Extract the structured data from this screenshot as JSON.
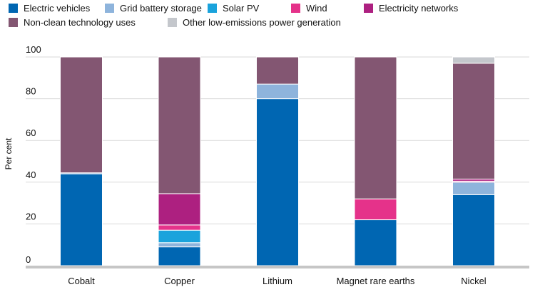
{
  "chart_data": {
    "type": "bar",
    "stacked": true,
    "categories": [
      "Cobalt",
      "Copper",
      "Lithium",
      "Magnet rare earths",
      "Nickel"
    ],
    "ylabel": "Per cent",
    "ylim": [
      0,
      100
    ],
    "yticks": [
      0,
      20,
      40,
      60,
      80,
      100
    ],
    "grid": true,
    "legend_placement": "top-left",
    "series": [
      {
        "name": "Electric vehicles",
        "color": "#0066b2",
        "values": [
          44,
          9,
          80,
          22,
          34
        ]
      },
      {
        "name": "Grid battery storage",
        "color": "#8eb4dc",
        "values": [
          0.5,
          2,
          7,
          0,
          6
        ]
      },
      {
        "name": "Solar PV",
        "color": "#1aa3dc",
        "values": [
          0,
          6,
          0,
          0,
          0
        ]
      },
      {
        "name": "Wind",
        "color": "#e5328a",
        "values": [
          0,
          2.5,
          0,
          10,
          0.5
        ]
      },
      {
        "name": "Electricity networks",
        "color": "#ad2080",
        "values": [
          0,
          15,
          0,
          0,
          1
        ]
      },
      {
        "name": "Non-clean technology uses",
        "color": "#835672",
        "values": [
          55.5,
          65.5,
          13,
          68,
          55.5
        ]
      },
      {
        "name": "Other low-emissions power generation",
        "color": "#c4c7cc",
        "values": [
          0,
          0,
          0,
          0,
          3
        ]
      }
    ]
  }
}
